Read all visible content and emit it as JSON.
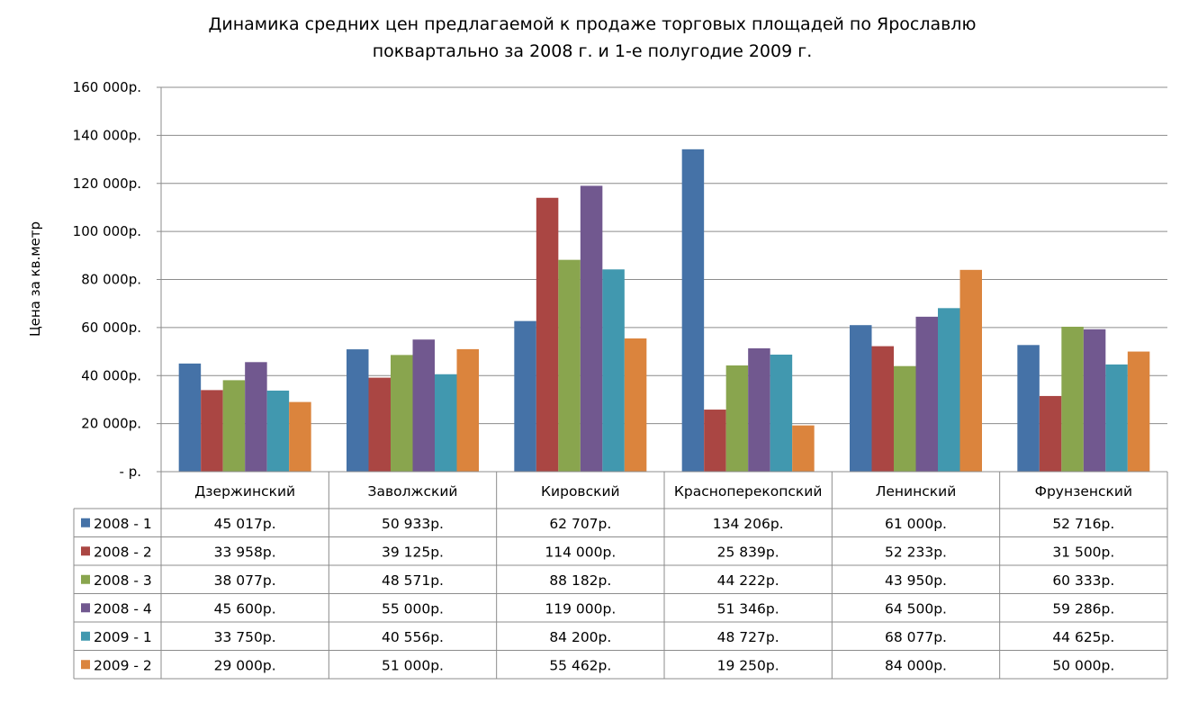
{
  "chart_data": {
    "type": "bar",
    "title": "Динамика средних цен предлагаемой к продаже торговых площадей по Ярославлю",
    "subtitle": "поквартально за 2008 г. и 1-е полугодие 2009 г.",
    "xlabel": "",
    "ylabel": "Цена за кв.метр",
    "ylim": [
      0,
      160000
    ],
    "yticks": [
      0,
      20000,
      40000,
      60000,
      80000,
      100000,
      120000,
      140000,
      160000
    ],
    "ytick_labels": [
      "-  р.",
      "20 000р.",
      "40 000р.",
      "60 000р.",
      "80 000р.",
      "100 000р.",
      "120 000р.",
      "140 000р.",
      "160 000р."
    ],
    "grid": true,
    "legend": "data table (left)",
    "categories": [
      "Дзержинский",
      "Заволжский",
      "Кировский",
      "Красноперекопский",
      "Ленинский",
      "Фрунзенский"
    ],
    "series": [
      {
        "name": "2008 - 1",
        "color": "#4572A7",
        "values": [
          45017,
          50933,
          62707,
          134206,
          61000,
          52716
        ],
        "labels": [
          "45 017р.",
          "50 933р.",
          "62 707р.",
          "134 206р.",
          "61 000р.",
          "52 716р."
        ]
      },
      {
        "name": "2008 - 2",
        "color": "#AA4643",
        "values": [
          33958,
          39125,
          114000,
          25839,
          52233,
          31500
        ],
        "labels": [
          "33 958р.",
          "39 125р.",
          "114 000р.",
          "25 839р.",
          "52 233р.",
          "31 500р."
        ]
      },
      {
        "name": "2008 - 3",
        "color": "#89A54E",
        "values": [
          38077,
          48571,
          88182,
          44222,
          43950,
          60333
        ],
        "labels": [
          "38 077р.",
          "48 571р.",
          "88 182р.",
          "44 222р.",
          "43 950р.",
          "60 333р."
        ]
      },
      {
        "name": "2008 - 4",
        "color": "#71588F",
        "values": [
          45600,
          55000,
          119000,
          51346,
          64500,
          59286
        ],
        "labels": [
          "45 600р.",
          "55 000р.",
          "119 000р.",
          "51 346р.",
          "64 500р.",
          "59 286р."
        ]
      },
      {
        "name": "2009 - 1",
        "color": "#4198AF",
        "values": [
          33750,
          40556,
          84200,
          48727,
          68077,
          44625
        ],
        "labels": [
          "33 750р.",
          "40 556р.",
          "84 200р.",
          "48 727р.",
          "68 077р.",
          "44 625р."
        ]
      },
      {
        "name": "2009 - 2",
        "color": "#DB843D",
        "values": [
          29000,
          51000,
          55462,
          19250,
          84000,
          50000
        ],
        "labels": [
          "29 000р.",
          "51 000р.",
          "55 462р.",
          "19 250р.",
          "84 000р.",
          "50 000р."
        ]
      }
    ]
  }
}
